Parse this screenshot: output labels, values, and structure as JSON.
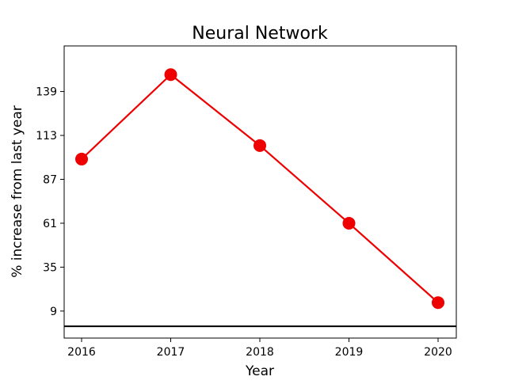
{
  "chart_data": {
    "type": "line",
    "title": "Neural Network",
    "xlabel": "Year",
    "ylabel": "% increase from last year",
    "categories": [
      "2016",
      "2017",
      "2018",
      "2019",
      "2020"
    ],
    "series": [
      {
        "values": [
          99,
          149,
          107,
          61,
          14
        ],
        "color": "#ee0000",
        "marker": "circle"
      }
    ],
    "yticks": [
      9,
      35,
      61,
      87,
      113,
      139
    ],
    "ylim": [
      -7,
      166
    ],
    "reference_line": {
      "y": 0,
      "color": "#000000"
    },
    "grid": false,
    "legend": "none"
  }
}
